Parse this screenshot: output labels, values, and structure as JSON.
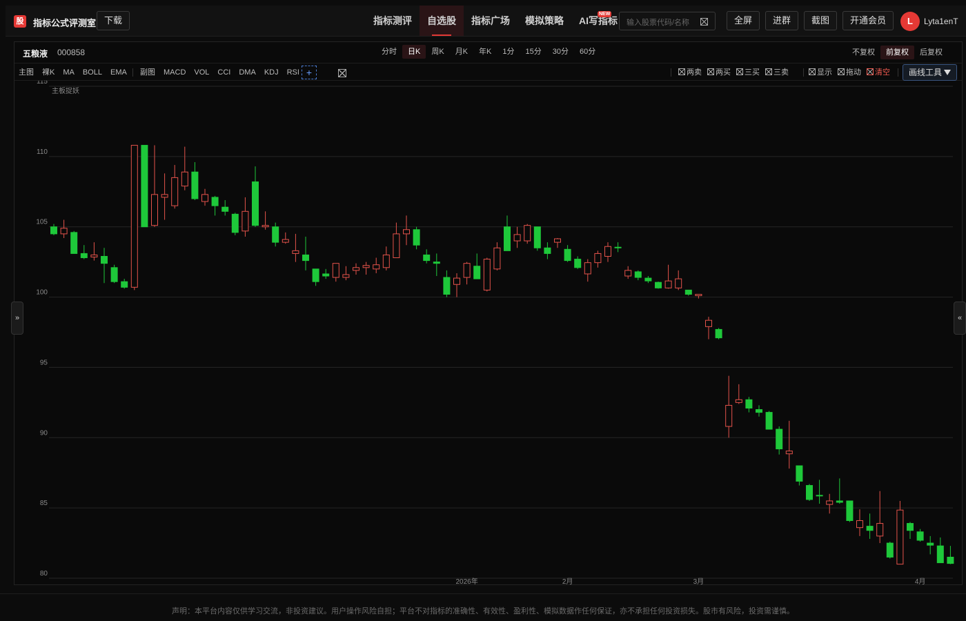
{
  "header": {
    "logo": "股",
    "title": "指标公式评测室",
    "download": "下载",
    "nav": [
      "指标测评",
      "自选股",
      "指标广场",
      "模拟策略",
      "AI写指标"
    ],
    "new_badge": "NEW",
    "search_placeholder": "输入股票代码/名称",
    "buttons": [
      "全屏",
      "进群",
      "截图",
      "开通会员"
    ],
    "avatar": "L",
    "user": "Lyta1enT"
  },
  "stock": {
    "name": "五粮液",
    "code": "000858"
  },
  "periods": [
    "分时",
    "日K",
    "周K",
    "月K",
    "年K",
    "1分",
    "15分",
    "30分",
    "60分"
  ],
  "adjust": [
    "不复权",
    "前复权",
    "后复权"
  ],
  "main_indicators": {
    "label": "主图",
    "items": [
      "裸K",
      "MA",
      "BOLL",
      "EMA"
    ]
  },
  "sub_indicators": {
    "label": "副图",
    "items": [
      "MACD",
      "VOL",
      "CCI",
      "DMA",
      "KDJ",
      "RSI"
    ]
  },
  "add": "+",
  "signals": [
    "两卖",
    "两买",
    "三买",
    "三卖"
  ],
  "toggles": [
    "显示",
    "拖动",
    "清空"
  ],
  "draw_tools": "画线工具",
  "side_tabs": [
    "»",
    "«"
  ],
  "chart_data": {
    "type": "candlestick",
    "title": "主板捉妖",
    "categories": [
      null,
      null,
      null,
      null,
      null,
      null,
      null,
      null,
      null,
      null,
      null,
      null,
      null,
      null,
      null,
      null,
      null,
      null,
      null,
      null,
      null,
      null,
      null,
      null,
      null,
      null,
      null,
      null,
      null,
      null,
      null,
      null,
      null,
      null,
      null,
      null,
      null,
      null,
      null,
      null,
      null,
      "2026年",
      null,
      null,
      null,
      null,
      null,
      null,
      null,
      null,
      null,
      "2月",
      null,
      null,
      null,
      null,
      null,
      null,
      null,
      null,
      null,
      null,
      null,
      null,
      "3月",
      null,
      null,
      null,
      null,
      null,
      null,
      null,
      null,
      null,
      null,
      null,
      null,
      null,
      null,
      null,
      null,
      null,
      null,
      null,
      null,
      null,
      "4月",
      null,
      null,
      null
    ],
    "open": [
      105.0,
      104.5,
      104.6,
      103.1,
      102.85,
      102.9,
      102.1,
      101.1,
      100.7,
      110.8,
      105.1,
      107.1,
      106.5,
      107.9,
      108.9,
      106.8,
      107.1,
      106.4,
      105.9,
      104.7,
      108.2,
      105.0,
      105.0,
      103.9,
      103.1,
      103.0,
      102.0,
      101.65,
      101.4,
      101.4,
      101.9,
      102.1,
      102.0,
      102.1,
      102.8,
      104.5,
      104.8,
      103.0,
      102.5,
      101.4,
      100.9,
      101.4,
      102.2,
      100.5,
      102.0,
      105.0,
      104.0,
      104.0,
      105.0,
      103.5,
      103.9,
      103.4,
      102.7,
      101.65,
      102.45,
      102.9,
      103.55,
      101.5,
      101.8,
      101.35,
      101.05,
      100.65,
      100.65,
      100.5,
      100.1,
      97.9,
      97.7,
      90.8,
      92.5,
      92.7,
      92.0,
      91.8,
      90.6,
      88.85,
      88.0,
      86.6,
      85.9,
      85.25,
      85.5,
      85.5,
      83.6,
      83.7,
      83.0,
      82.5,
      81.0,
      83.9,
      83.3,
      82.5,
      82.3,
      81.5
    ],
    "high": [
      105.2,
      105.5,
      104.7,
      103.7,
      103.9,
      103.5,
      102.3,
      101.3,
      110.8,
      110.8,
      110.8,
      108.8,
      109.4,
      110.7,
      109.6,
      107.7,
      107.2,
      106.9,
      106.0,
      107.1,
      109.3,
      106.1,
      105.3,
      104.6,
      104.5,
      104.3,
      102.0,
      102.0,
      102.4,
      102.2,
      102.4,
      102.5,
      102.8,
      103.6,
      105.3,
      105.8,
      105.0,
      103.4,
      103.1,
      101.9,
      101.7,
      102.5,
      103.1,
      102.8,
      103.9,
      105.8,
      105.0,
      105.2,
      105.0,
      103.9,
      104.2,
      103.7,
      102.9,
      102.7,
      103.3,
      103.9,
      103.9,
      102.2,
      101.9,
      101.5,
      101.1,
      102.3,
      101.9,
      100.5,
      100.2,
      98.6,
      97.8,
      94.4,
      93.8,
      92.9,
      92.3,
      91.9,
      90.8,
      91.2,
      88.0,
      86.7,
      87.0,
      86.0,
      87.1,
      85.5,
      84.9,
      84.6,
      86.2,
      82.6,
      85.5,
      84.0,
      83.5,
      83.0,
      82.9,
      82.3
    ],
    "low": [
      104.4,
      104.2,
      103.1,
      102.7,
      102.6,
      101.0,
      101.0,
      100.6,
      100.5,
      105.0,
      105.0,
      105.5,
      106.3,
      107.6,
      106.9,
      106.5,
      105.8,
      105.8,
      104.4,
      104.3,
      105.0,
      104.8,
      103.6,
      103.8,
      102.5,
      101.9,
      100.8,
      101.3,
      101.1,
      101.2,
      101.6,
      101.6,
      101.7,
      101.9,
      102.8,
      103.7,
      103.4,
      102.4,
      101.5,
      100.0,
      100.0,
      100.9,
      101.3,
      100.4,
      101.9,
      103.3,
      103.5,
      103.8,
      103.3,
      102.7,
      103.5,
      102.5,
      102.0,
      101.1,
      102.1,
      102.5,
      103.2,
      101.3,
      101.2,
      101.0,
      100.6,
      100.6,
      100.5,
      100.1,
      99.9,
      97.0,
      97.0,
      90.0,
      92.4,
      91.8,
      91.5,
      90.6,
      88.8,
      87.8,
      86.6,
      85.5,
      85.3,
      84.6,
      85.3,
      84.0,
      83.0,
      82.8,
      82.5,
      81.4,
      81.0,
      82.8,
      82.6,
      81.7,
      81.1,
      81.0
    ],
    "close": [
      104.5,
      104.9,
      103.1,
      102.8,
      103.0,
      102.4,
      101.1,
      100.7,
      110.8,
      105.0,
      107.3,
      107.3,
      108.5,
      108.9,
      107.0,
      107.3,
      106.5,
      106.1,
      104.6,
      106.1,
      105.1,
      105.1,
      103.9,
      104.1,
      103.3,
      102.6,
      101.1,
      101.5,
      102.4,
      101.6,
      102.1,
      102.25,
      102.3,
      103.0,
      104.5,
      104.8,
      103.7,
      102.6,
      102.4,
      100.2,
      101.35,
      102.4,
      101.3,
      102.7,
      103.5,
      103.3,
      104.45,
      105.1,
      103.5,
      103.1,
      104.15,
      102.6,
      102.1,
      102.45,
      103.1,
      103.6,
      103.5,
      101.9,
      101.4,
      101.15,
      100.65,
      101.15,
      101.3,
      100.2,
      100.2,
      98.35,
      97.1,
      92.3,
      92.7,
      92.1,
      91.8,
      90.6,
      89.2,
      89.05,
      86.9,
      85.6,
      85.85,
      85.5,
      85.4,
      84.1,
      84.1,
      83.4,
      83.9,
      81.5,
      84.85,
      83.4,
      82.7,
      82.35,
      81.1,
      81.05
    ],
    "up_color": "#e5534b",
    "down_color": "#1ec83a",
    "ylim": [
      80,
      115
    ],
    "yticks": [
      80,
      85,
      90,
      95,
      100,
      105,
      110,
      115
    ],
    "grid": true
  },
  "footer": "声明：本平台内容仅供学习交流，非投资建议。用户操作风险自担；平台不对指标的准确性、有效性、盈利性、模拟数据作任何保证，亦不承担任何投资损失。股市有风险，投资需谨慎。"
}
